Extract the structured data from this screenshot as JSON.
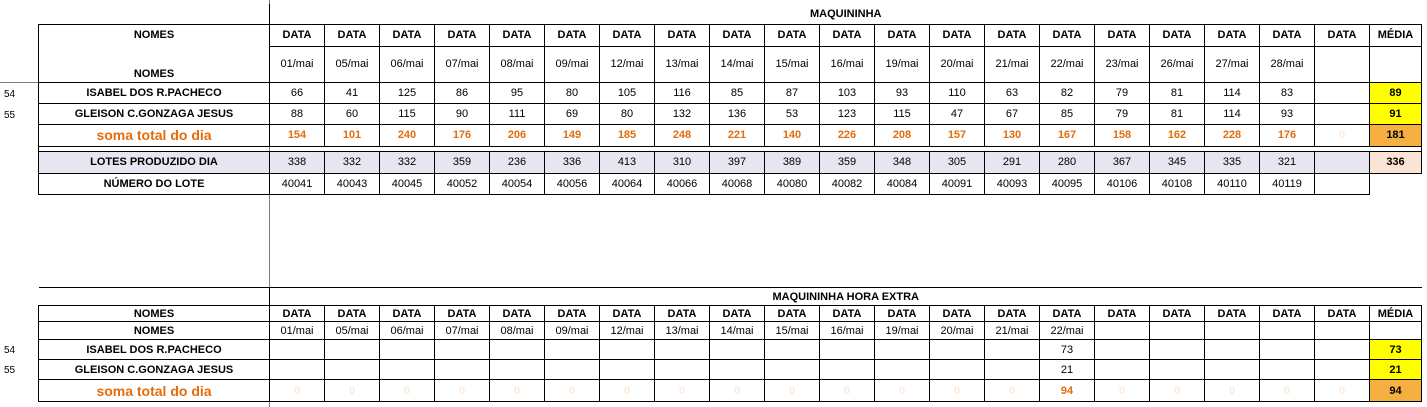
{
  "rows": {
    "r54": "54",
    "r55": "55"
  },
  "t1": {
    "title": "MAQUININHA",
    "nomes": "NOMES",
    "data": "DATA",
    "media": "MÉDIA",
    "dates": [
      "01/mai",
      "05/mai",
      "06/mai",
      "07/mai",
      "08/mai",
      "09/mai",
      "12/mai",
      "13/mai",
      "14/mai",
      "15/mai",
      "16/mai",
      "19/mai",
      "20/mai",
      "21/mai",
      "22/mai",
      "23/mai",
      "26/mai",
      "27/mai",
      "28/mai",
      ""
    ],
    "people": [
      {
        "name": "ISABEL DOS R.PACHECO",
        "values": [
          "66",
          "41",
          "125",
          "86",
          "95",
          "80",
          "105",
          "116",
          "85",
          "87",
          "103",
          "93",
          "110",
          "63",
          "82",
          "79",
          "81",
          "114",
          "83",
          ""
        ],
        "avg": "89"
      },
      {
        "name": "GLEISON C.GONZAGA JESUS",
        "values": [
          "88",
          "60",
          "115",
          "90",
          "111",
          "69",
          "80",
          "132",
          "136",
          "53",
          "123",
          "115",
          "47",
          "67",
          "85",
          "79",
          "81",
          "114",
          "93",
          ""
        ],
        "avg": "91"
      }
    ],
    "soma": {
      "label": "soma total  do dia",
      "values": [
        "154",
        "101",
        "240",
        "176",
        "206",
        "149",
        "185",
        "248",
        "221",
        "140",
        "226",
        "208",
        "157",
        "130",
        "167",
        "158",
        "162",
        "228",
        "176",
        "0"
      ],
      "avg": "181"
    },
    "lotes": {
      "label": "LOTES PRODUZIDO DIA",
      "values": [
        "338",
        "332",
        "332",
        "359",
        "236",
        "336",
        "413",
        "310",
        "397",
        "389",
        "359",
        "348",
        "305",
        "291",
        "280",
        "367",
        "345",
        "335",
        "321",
        ""
      ],
      "avg": "336"
    },
    "numero": {
      "label": "NÚMERO DO LOTE",
      "values": [
        "40041",
        "40043",
        "40045",
        "40052",
        "40054",
        "40056",
        "40064",
        "40066",
        "40068",
        "40080",
        "40082",
        "40084",
        "40091",
        "40093",
        "40095",
        "40106",
        "40108",
        "40110",
        "40119",
        ""
      ]
    }
  },
  "t2": {
    "title": "MAQUININHA HORA EXTRA",
    "nomes": "NOMES",
    "data": "DATA",
    "media": "MÉDIA",
    "dates": [
      "01/mai",
      "05/mai",
      "06/mai",
      "07/mai",
      "08/mai",
      "09/mai",
      "12/mai",
      "13/mai",
      "14/mai",
      "15/mai",
      "16/mai",
      "19/mai",
      "20/mai",
      "21/mai",
      "22/mai",
      "",
      "",
      "",
      "",
      ""
    ],
    "people": [
      {
        "name": "ISABEL DOS R.PACHECO",
        "values": [
          "",
          "",
          "",
          "",
          "",
          "",
          "",
          "",
          "",
          "",
          "",
          "",
          "",
          "",
          "73",
          "",
          "",
          "",
          "",
          ""
        ],
        "avg": "73"
      },
      {
        "name": "GLEISON C.GONZAGA JESUS",
        "values": [
          "",
          "",
          "",
          "",
          "",
          "",
          "",
          "",
          "",
          "",
          "",
          "",
          "",
          "",
          "21",
          "",
          "",
          "",
          "",
          ""
        ],
        "avg": "21"
      }
    ],
    "soma": {
      "label": "soma total  do dia",
      "values": [
        "0",
        "0",
        "0",
        "0",
        "0",
        "0",
        "0",
        "0",
        "0",
        "0",
        "0",
        "0",
        "0",
        "0",
        "94",
        "0",
        "0",
        "0",
        "0",
        "0"
      ],
      "avg": "94"
    }
  }
}
